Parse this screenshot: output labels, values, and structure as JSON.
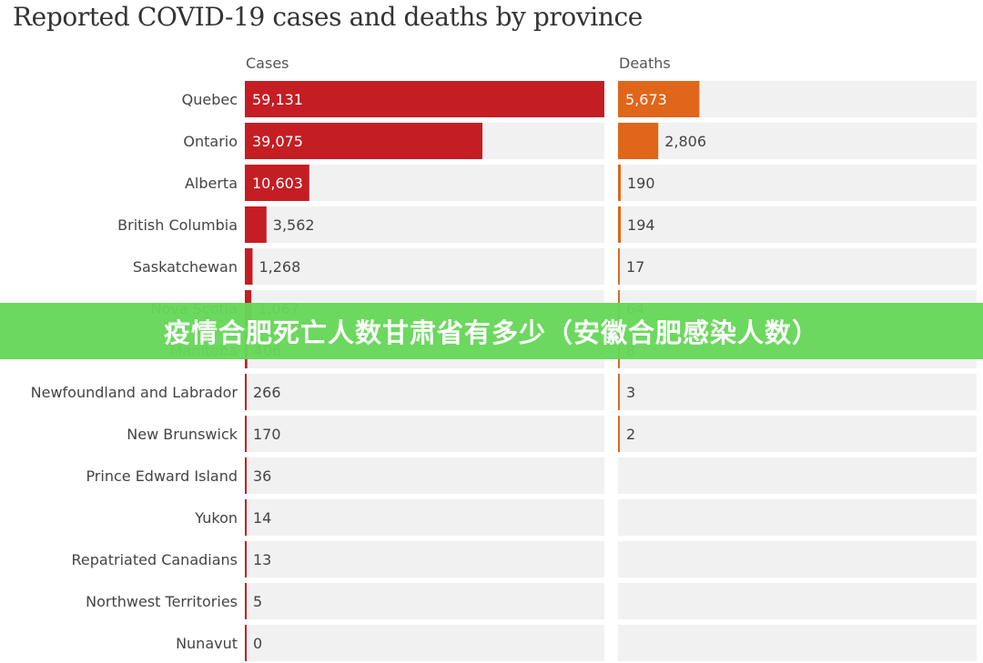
{
  "chart_data": {
    "type": "bar",
    "title": "Reported COVID-19 cases and deaths by province",
    "categories": [
      "Quebec",
      "Ontario",
      "Alberta",
      "British Columbia",
      "Saskatchewan",
      "Nova Scotia",
      "Manitoba",
      "Newfoundland and Labrador",
      "New Brunswick",
      "Prince Edward Island",
      "Yukon",
      "Repatriated Canadians",
      "Northwest Territories",
      "Nunavut"
    ],
    "series": [
      {
        "name": "Cases",
        "color": "#c41e24",
        "values": [
          59131,
          39075,
          10603,
          3562,
          1268,
          1067,
          406,
          266,
          170,
          36,
          14,
          13,
          5,
          0
        ],
        "labels": [
          "59,131",
          "39,075",
          "10,603",
          "3,562",
          "1,268",
          "1,067",
          "406",
          "266",
          "170",
          "36",
          "14",
          "13",
          "5",
          "0"
        ]
      },
      {
        "name": "Deaths",
        "color": "#e0661a",
        "values": [
          5673,
          2806,
          190,
          194,
          17,
          64,
          8,
          3,
          2,
          null,
          null,
          null,
          null,
          null
        ],
        "labels": [
          "5,673",
          "2,806",
          "190",
          "194",
          "17",
          "64",
          "8",
          "3",
          "2",
          "",
          "",
          "",
          "",
          ""
        ]
      }
    ],
    "xlim_cases": [
      0,
      59131
    ],
    "xlim_deaths": [
      0,
      25000
    ]
  },
  "overlay": {
    "banner_text": "疫情合肥死亡人数甘肃省有多少（安徽合肥感染人数）"
  }
}
